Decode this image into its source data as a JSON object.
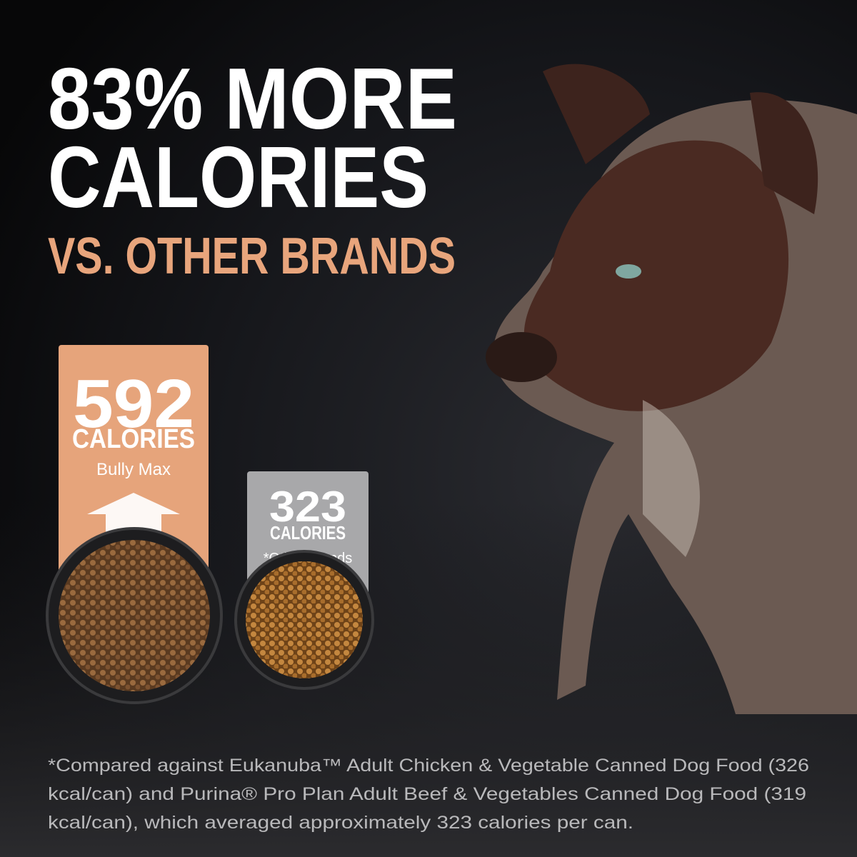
{
  "headline": {
    "line1": "83% MORE",
    "line2": "CALORIES",
    "line3": "VS. OTHER BRANDS"
  },
  "cards": [
    {
      "value": "592",
      "unit": "CALORIES",
      "label": "Bully Max"
    },
    {
      "value": "323",
      "unit": "CALORIES",
      "label": "*Other brands"
    }
  ],
  "footnote": [
    "*Compared against Eukanuba™ Adult Chicken & Vegetable Canned Dog Food (326",
    "kcal/can) and Purina® Pro Plan Adult Beef & Vegetables Canned Dog Food (319",
    "kcal/can), which averaged approximately 323 calories per can."
  ]
}
